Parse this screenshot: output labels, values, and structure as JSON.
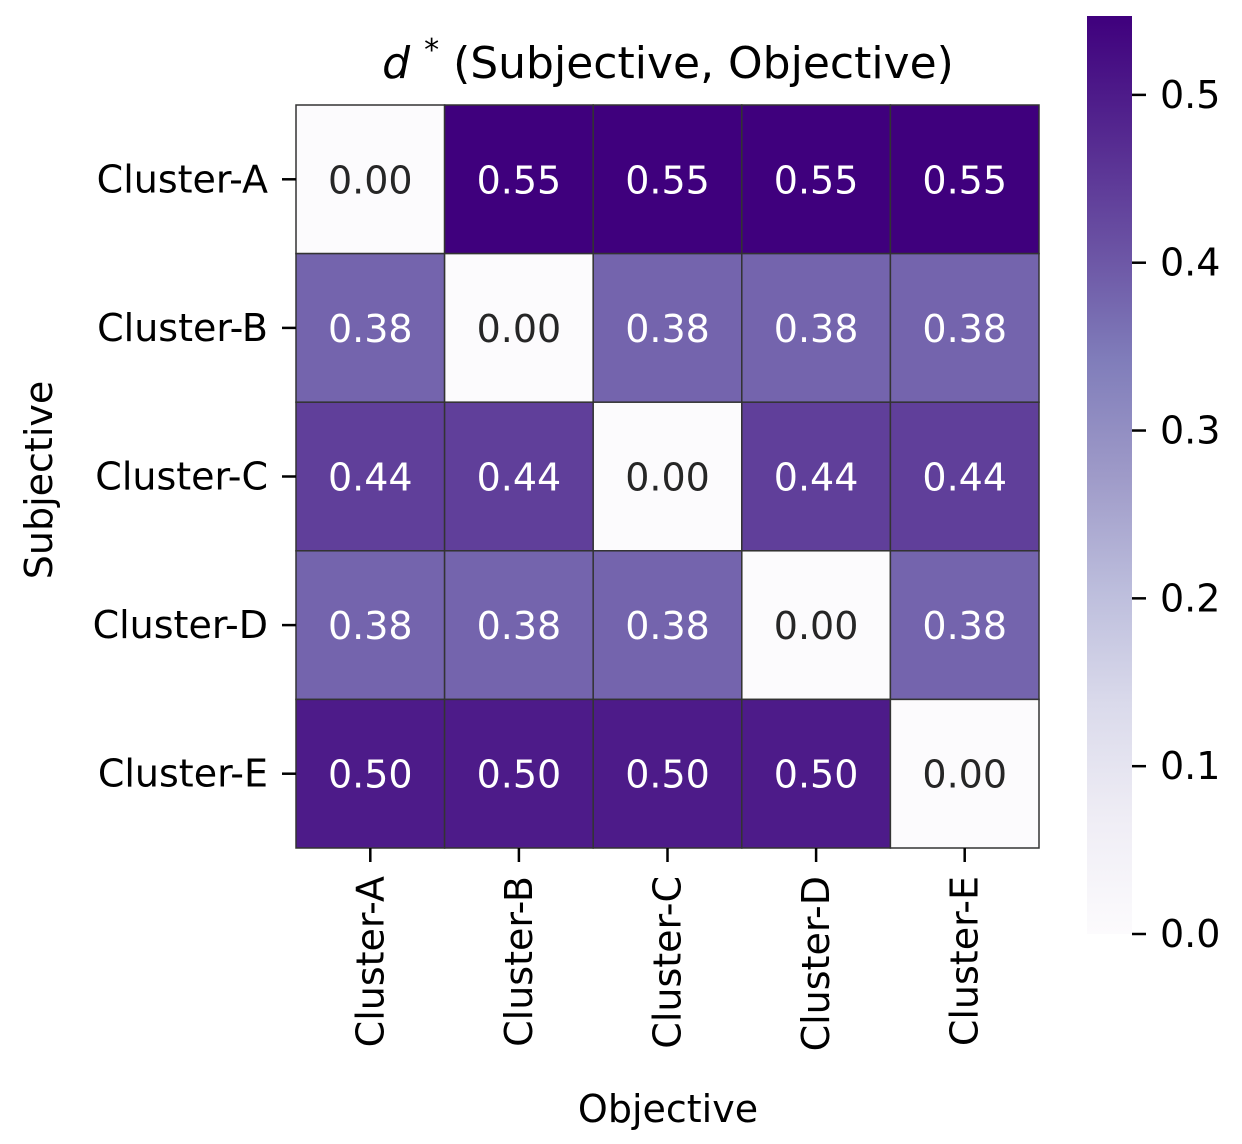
{
  "chart_data": {
    "type": "heatmap",
    "title_main": "d",
    "title_sup": "*",
    "title_rest": "(Subjective, Objective)",
    "xlabel": "Objective",
    "ylabel": "Subjective",
    "x_categories": [
      "Cluster-A",
      "Cluster-B",
      "Cluster-C",
      "Cluster-D",
      "Cluster-E"
    ],
    "y_categories": [
      "Cluster-A",
      "Cluster-B",
      "Cluster-C",
      "Cluster-D",
      "Cluster-E"
    ],
    "values": [
      [
        0.0,
        0.55,
        0.55,
        0.55,
        0.55
      ],
      [
        0.38,
        0.0,
        0.38,
        0.38,
        0.38
      ],
      [
        0.44,
        0.44,
        0.0,
        0.44,
        0.44
      ],
      [
        0.38,
        0.38,
        0.38,
        0.0,
        0.38
      ],
      [
        0.5,
        0.5,
        0.5,
        0.5,
        0.0
      ]
    ],
    "labels": [
      [
        "0.00",
        "0.55",
        "0.55",
        "0.55",
        "0.55"
      ],
      [
        "0.38",
        "0.00",
        "0.38",
        "0.38",
        "0.38"
      ],
      [
        "0.44",
        "0.44",
        "0.00",
        "0.44",
        "0.44"
      ],
      [
        "0.38",
        "0.38",
        "0.38",
        "0.00",
        "0.38"
      ],
      [
        "0.50",
        "0.50",
        "0.50",
        "0.50",
        "0.00"
      ]
    ],
    "colormap": "Purples",
    "colorbar": {
      "vmin": 0.0,
      "vmax": 0.547,
      "ticks": [
        0.0,
        0.1,
        0.2,
        0.3,
        0.4,
        0.5
      ],
      "tick_labels": [
        "0.0",
        "0.1",
        "0.2",
        "0.3",
        "0.4",
        "0.5"
      ]
    },
    "colors": {
      "cell_border": "#333333",
      "text_dark": "#262626",
      "text_light": "#ffffff"
    }
  }
}
